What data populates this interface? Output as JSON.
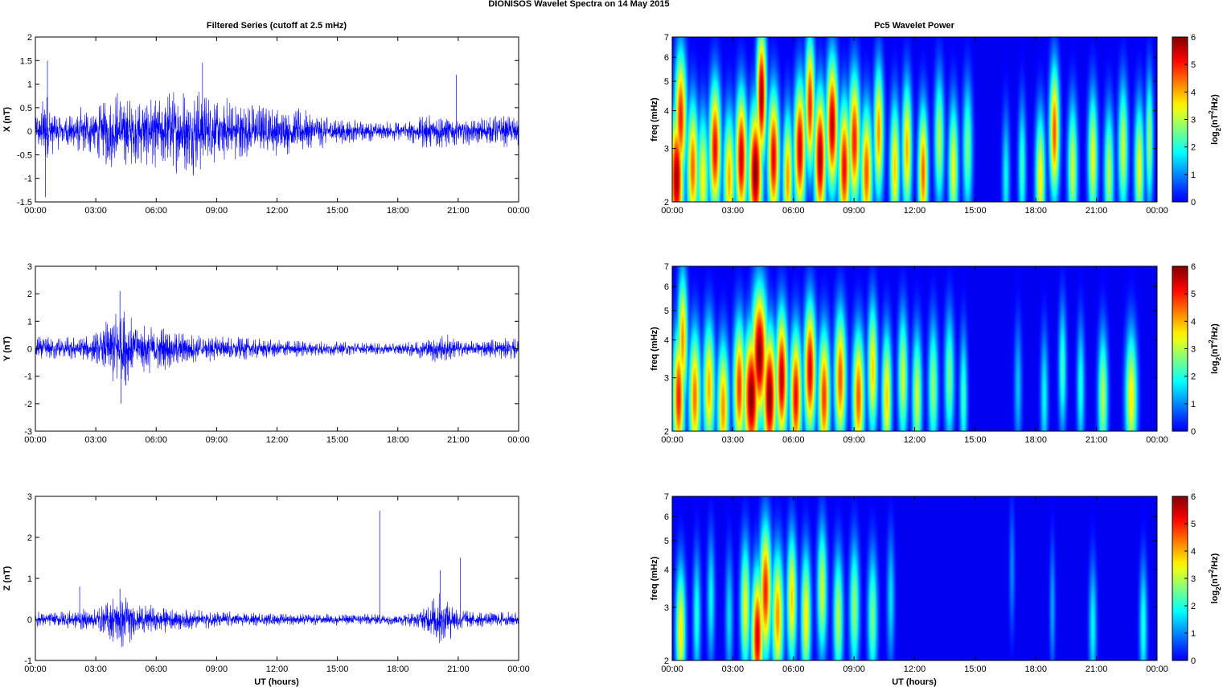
{
  "figure": {
    "title": "DIONISOS Wavelet Spectra on 14 May      2015",
    "left_column_title": "Filtered Series (cutoff at 2.5 mHz)",
    "right_column_title": "Pc5 Wavelet Power",
    "xlabel": "UT (hours)"
  },
  "chart_data": [
    {
      "type": "line",
      "panel": "X",
      "ylabel": "X (nT)",
      "x_ticks": [
        "00:00",
        "03:00",
        "06:00",
        "09:00",
        "12:00",
        "15:00",
        "18:00",
        "21:00",
        "00:00"
      ],
      "xlim_hours": [
        0,
        24
      ],
      "ylim": [
        -1.5,
        2
      ],
      "y_ticks": [
        "-1.5",
        "-1",
        "-0.5",
        "0",
        "0.5",
        "1",
        "1.5",
        "2"
      ],
      "line_color": "#0000ff",
      "envelope": {
        "hours": [
          0,
          0.3,
          0.5,
          0.7,
          1.0,
          1.5,
          2.0,
          2.5,
          3.0,
          3.5,
          4.0,
          4.5,
          5.0,
          5.5,
          6.0,
          7.0,
          8.0,
          8.5,
          9.0,
          10.0,
          11.0,
          12.0,
          13.0,
          14.0,
          15.0,
          16.0,
          17.0,
          18.0,
          19.0,
          19.5,
          20.0,
          20.5,
          21.0,
          22.0,
          23.0,
          24.0
        ],
        "amplitude": [
          0.35,
          0.6,
          1.0,
          0.6,
          0.45,
          0.35,
          0.5,
          0.55,
          0.6,
          0.8,
          0.9,
          0.85,
          0.7,
          0.75,
          0.8,
          0.9,
          1.0,
          0.8,
          0.8,
          0.7,
          0.6,
          0.55,
          0.5,
          0.4,
          0.3,
          0.25,
          0.2,
          0.22,
          0.3,
          0.45,
          0.45,
          0.4,
          0.3,
          0.3,
          0.35,
          0.35
        ]
      },
      "spikes": [
        {
          "hour": 0.6,
          "y": 1.5
        },
        {
          "hour": 0.5,
          "y": -1.4
        },
        {
          "hour": 8.3,
          "y": 1.45
        },
        {
          "hour": 20.9,
          "y": 1.2
        }
      ]
    },
    {
      "type": "line",
      "panel": "Y",
      "ylabel": "Y (nT)",
      "x_ticks": [
        "00:00",
        "03:00",
        "06:00",
        "09:00",
        "12:00",
        "15:00",
        "18:00",
        "21:00",
        "00:00"
      ],
      "xlim_hours": [
        0,
        24
      ],
      "ylim": [
        -3,
        3
      ],
      "y_ticks": [
        "-3",
        "-2",
        "-1",
        "0",
        "1",
        "2",
        "3"
      ],
      "line_color": "#0000ff",
      "envelope": {
        "hours": [
          0,
          1.0,
          2.0,
          3.0,
          3.5,
          4.0,
          4.3,
          4.7,
          5.0,
          6.0,
          7.0,
          8.0,
          9.0,
          10.0,
          11.0,
          12.0,
          14.0,
          16.0,
          18.0,
          19.5,
          20.0,
          20.5,
          21.0,
          22.0,
          23.0,
          24.0
        ],
        "amplitude": [
          0.5,
          0.45,
          0.45,
          0.6,
          1.0,
          1.6,
          1.8,
          1.3,
          1.0,
          0.9,
          0.7,
          0.55,
          0.5,
          0.45,
          0.4,
          0.35,
          0.3,
          0.25,
          0.22,
          0.4,
          0.6,
          0.55,
          0.35,
          0.3,
          0.4,
          0.4
        ]
      },
      "spikes": [
        {
          "hour": 4.2,
          "y": 2.1
        },
        {
          "hour": 4.25,
          "y": -2.0
        }
      ]
    },
    {
      "type": "line",
      "panel": "Z",
      "ylabel": "Z (nT)",
      "x_ticks": [
        "00:00",
        "03:00",
        "06:00",
        "09:00",
        "12:00",
        "15:00",
        "18:00",
        "21:00",
        "00:00"
      ],
      "xlim_hours": [
        0,
        24
      ],
      "ylim": [
        -1,
        3
      ],
      "y_ticks": [
        "-1",
        "0",
        "1",
        "2",
        "3"
      ],
      "line_color": "#0000ff",
      "envelope": {
        "hours": [
          0,
          1.0,
          2.0,
          3.0,
          3.5,
          4.0,
          4.3,
          4.7,
          5.0,
          6.0,
          7.0,
          8.0,
          10.0,
          12.0,
          14.0,
          16.0,
          18.0,
          19.0,
          19.5,
          20.0,
          20.5,
          21.0,
          22.0,
          24.0
        ],
        "amplitude": [
          0.2,
          0.2,
          0.25,
          0.3,
          0.45,
          0.7,
          0.75,
          0.6,
          0.4,
          0.35,
          0.3,
          0.25,
          0.2,
          0.15,
          0.15,
          0.15,
          0.15,
          0.2,
          0.45,
          0.7,
          0.55,
          0.3,
          0.2,
          0.2
        ]
      },
      "spikes": [
        {
          "hour": 2.2,
          "y": 0.8
        },
        {
          "hour": 4.2,
          "y": 0.75
        },
        {
          "hour": 17.1,
          "y": 2.65
        },
        {
          "hour": 21.1,
          "y": 1.5
        },
        {
          "hour": 20.1,
          "y": 1.2
        }
      ]
    },
    {
      "type": "heatmap",
      "panel": "X",
      "ylabel": "freq (mHz)",
      "y_scale": "log",
      "ylim_mHz": [
        2,
        7
      ],
      "y_ticks": [
        "2",
        "3",
        "4",
        "5",
        "6",
        "7"
      ],
      "x_ticks": [
        "00:00",
        "03:00",
        "06:00",
        "09:00",
        "12:00",
        "15:00",
        "18:00",
        "21:00",
        "00:00"
      ],
      "xlim_hours": [
        0,
        24
      ],
      "colorbar": {
        "label_base": "log",
        "label_sub": "2",
        "label_mid": "(nT",
        "label_sup": "2",
        "label_end": "/Hz)",
        "ticks": [
          "0",
          "1",
          "2",
          "3",
          "4",
          "5",
          "6"
        ],
        "range": [
          0,
          6
        ]
      },
      "bursts": [
        {
          "t": 0.2,
          "f": 2.4,
          "p": 5.8,
          "w": 0.35
        },
        {
          "t": 0.4,
          "f": 3.8,
          "p": 5.0,
          "w": 0.3
        },
        {
          "t": 1.0,
          "f": 2.6,
          "p": 4.5,
          "w": 0.3
        },
        {
          "t": 1.5,
          "f": 2.4,
          "p": 3.5,
          "w": 0.3
        },
        {
          "t": 2.1,
          "f": 3.0,
          "p": 5.2,
          "w": 0.3
        },
        {
          "t": 2.8,
          "f": 2.4,
          "p": 4.0,
          "w": 0.3
        },
        {
          "t": 3.4,
          "f": 2.8,
          "p": 5.5,
          "w": 0.3
        },
        {
          "t": 4.1,
          "f": 2.5,
          "p": 6.0,
          "w": 0.35
        },
        {
          "t": 4.4,
          "f": 4.5,
          "p": 5.8,
          "w": 0.25
        },
        {
          "t": 5.0,
          "f": 2.8,
          "p": 5.3,
          "w": 0.3
        },
        {
          "t": 5.7,
          "f": 2.4,
          "p": 4.2,
          "w": 0.25
        },
        {
          "t": 6.3,
          "f": 3.0,
          "p": 5.5,
          "w": 0.3
        },
        {
          "t": 6.8,
          "f": 4.2,
          "p": 5.0,
          "w": 0.25
        },
        {
          "t": 7.3,
          "f": 2.8,
          "p": 5.8,
          "w": 0.3
        },
        {
          "t": 7.9,
          "f": 3.6,
          "p": 5.6,
          "w": 0.3
        },
        {
          "t": 8.5,
          "f": 2.6,
          "p": 5.2,
          "w": 0.3
        },
        {
          "t": 9.0,
          "f": 3.2,
          "p": 5.0,
          "w": 0.3
        },
        {
          "t": 9.6,
          "f": 2.5,
          "p": 4.6,
          "w": 0.3
        },
        {
          "t": 10.2,
          "f": 3.4,
          "p": 4.2,
          "w": 0.25
        },
        {
          "t": 11.0,
          "f": 2.6,
          "p": 3.8,
          "w": 0.25
        },
        {
          "t": 11.6,
          "f": 3.0,
          "p": 4.0,
          "w": 0.25
        },
        {
          "t": 12.4,
          "f": 2.5,
          "p": 4.5,
          "w": 0.25
        },
        {
          "t": 13.2,
          "f": 3.2,
          "p": 3.0,
          "w": 0.25
        },
        {
          "t": 13.9,
          "f": 2.6,
          "p": 3.4,
          "w": 0.25
        },
        {
          "t": 14.6,
          "f": 3.0,
          "p": 2.6,
          "w": 0.25
        },
        {
          "t": 16.5,
          "f": 2.4,
          "p": 1.8,
          "w": 0.2
        },
        {
          "t": 17.3,
          "f": 2.6,
          "p": 2.2,
          "w": 0.2
        },
        {
          "t": 18.2,
          "f": 2.4,
          "p": 3.6,
          "w": 0.25
        },
        {
          "t": 18.9,
          "f": 3.4,
          "p": 4.6,
          "w": 0.25
        },
        {
          "t": 19.8,
          "f": 2.6,
          "p": 3.2,
          "w": 0.25
        },
        {
          "t": 20.8,
          "f": 2.8,
          "p": 3.4,
          "w": 0.25
        },
        {
          "t": 21.6,
          "f": 2.5,
          "p": 3.0,
          "w": 0.25
        },
        {
          "t": 22.3,
          "f": 3.0,
          "p": 3.2,
          "w": 0.25
        },
        {
          "t": 23.1,
          "f": 2.6,
          "p": 3.4,
          "w": 0.25
        },
        {
          "t": 23.6,
          "f": 3.2,
          "p": 2.8,
          "w": 0.2
        }
      ]
    },
    {
      "type": "heatmap",
      "panel": "Y",
      "ylabel": "freq (mHz)",
      "y_scale": "log",
      "ylim_mHz": [
        2,
        7
      ],
      "y_ticks": [
        "2",
        "3",
        "4",
        "5",
        "6",
        "7"
      ],
      "x_ticks": [
        "00:00",
        "03:00",
        "06:00",
        "09:00",
        "12:00",
        "15:00",
        "18:00",
        "21:00",
        "00:00"
      ],
      "xlim_hours": [
        0,
        24
      ],
      "colorbar": {
        "label_base": "log",
        "label_sub": "2",
        "label_mid": "(nT",
        "label_sup": "2",
        "label_end": "/Hz)",
        "ticks": [
          "0",
          "1",
          "2",
          "3",
          "4",
          "5",
          "6"
        ],
        "range": [
          0,
          6
        ]
      },
      "bursts": [
        {
          "t": 0.3,
          "f": 2.6,
          "p": 5.0,
          "w": 0.3
        },
        {
          "t": 0.5,
          "f": 4.0,
          "p": 4.2,
          "w": 0.25
        },
        {
          "t": 1.1,
          "f": 2.6,
          "p": 4.4,
          "w": 0.3
        },
        {
          "t": 1.8,
          "f": 2.8,
          "p": 4.0,
          "w": 0.3
        },
        {
          "t": 2.5,
          "f": 2.4,
          "p": 4.2,
          "w": 0.3
        },
        {
          "t": 3.3,
          "f": 2.8,
          "p": 4.8,
          "w": 0.3
        },
        {
          "t": 3.9,
          "f": 2.6,
          "p": 6.0,
          "w": 0.4
        },
        {
          "t": 4.3,
          "f": 3.6,
          "p": 6.0,
          "w": 0.4
        },
        {
          "t": 4.8,
          "f": 2.6,
          "p": 6.0,
          "w": 0.35
        },
        {
          "t": 5.4,
          "f": 3.0,
          "p": 5.6,
          "w": 0.3
        },
        {
          "t": 6.1,
          "f": 2.6,
          "p": 5.2,
          "w": 0.3
        },
        {
          "t": 6.8,
          "f": 3.2,
          "p": 5.4,
          "w": 0.3
        },
        {
          "t": 7.5,
          "f": 2.6,
          "p": 4.8,
          "w": 0.3
        },
        {
          "t": 8.3,
          "f": 3.0,
          "p": 4.6,
          "w": 0.3
        },
        {
          "t": 9.2,
          "f": 2.6,
          "p": 4.6,
          "w": 0.3
        },
        {
          "t": 9.9,
          "f": 3.2,
          "p": 3.8,
          "w": 0.25
        },
        {
          "t": 10.6,
          "f": 2.6,
          "p": 3.8,
          "w": 0.25
        },
        {
          "t": 11.4,
          "f": 3.0,
          "p": 3.2,
          "w": 0.25
        },
        {
          "t": 12.1,
          "f": 2.6,
          "p": 3.2,
          "w": 0.25
        },
        {
          "t": 12.9,
          "f": 2.8,
          "p": 2.8,
          "w": 0.25
        },
        {
          "t": 13.7,
          "f": 3.0,
          "p": 2.6,
          "w": 0.25
        },
        {
          "t": 14.4,
          "f": 2.6,
          "p": 2.2,
          "w": 0.2
        },
        {
          "t": 17.1,
          "f": 2.8,
          "p": 1.4,
          "w": 0.2
        },
        {
          "t": 18.4,
          "f": 2.6,
          "p": 1.8,
          "w": 0.2
        },
        {
          "t": 19.3,
          "f": 3.2,
          "p": 2.2,
          "w": 0.2
        },
        {
          "t": 20.2,
          "f": 2.8,
          "p": 2.0,
          "w": 0.2
        },
        {
          "t": 21.3,
          "f": 2.6,
          "p": 3.0,
          "w": 0.25
        },
        {
          "t": 22.7,
          "f": 2.6,
          "p": 3.6,
          "w": 0.3
        }
      ]
    },
    {
      "type": "heatmap",
      "panel": "Z",
      "ylabel": "freq (mHz)",
      "y_scale": "log",
      "ylim_mHz": [
        2,
        7
      ],
      "y_ticks": [
        "2",
        "3",
        "4",
        "5",
        "6",
        "7"
      ],
      "x_ticks": [
        "00:00",
        "03:00",
        "06:00",
        "09:00",
        "12:00",
        "15:00",
        "18:00",
        "21:00",
        "00:00"
      ],
      "xlim_hours": [
        0,
        24
      ],
      "colorbar": {
        "label_base": "log",
        "label_sub": "2",
        "label_mid": "(nT",
        "label_sup": "2",
        "label_end": "/Hz)",
        "ticks": [
          "0",
          "1",
          "2",
          "3",
          "4",
          "5",
          "6"
        ],
        "range": [
          0,
          6
        ]
      },
      "bursts": [
        {
          "t": 0.4,
          "f": 2.5,
          "p": 3.6,
          "w": 0.25
        },
        {
          "t": 1.2,
          "f": 2.8,
          "p": 2.0,
          "w": 0.2
        },
        {
          "t": 1.9,
          "f": 3.2,
          "p": 1.8,
          "w": 0.2
        },
        {
          "t": 2.8,
          "f": 2.8,
          "p": 1.6,
          "w": 0.2
        },
        {
          "t": 3.6,
          "f": 3.0,
          "p": 3.4,
          "w": 0.25
        },
        {
          "t": 4.2,
          "f": 2.4,
          "p": 5.4,
          "w": 0.3
        },
        {
          "t": 4.6,
          "f": 3.4,
          "p": 5.0,
          "w": 0.3
        },
        {
          "t": 5.2,
          "f": 2.8,
          "p": 4.2,
          "w": 0.3
        },
        {
          "t": 5.9,
          "f": 3.2,
          "p": 3.8,
          "w": 0.25
        },
        {
          "t": 6.6,
          "f": 2.8,
          "p": 3.6,
          "w": 0.25
        },
        {
          "t": 7.4,
          "f": 3.4,
          "p": 3.2,
          "w": 0.25
        },
        {
          "t": 8.2,
          "f": 2.8,
          "p": 3.0,
          "w": 0.25
        },
        {
          "t": 9.0,
          "f": 3.0,
          "p": 2.8,
          "w": 0.25
        },
        {
          "t": 9.9,
          "f": 2.8,
          "p": 2.6,
          "w": 0.25
        },
        {
          "t": 10.8,
          "f": 3.2,
          "p": 1.6,
          "w": 0.2
        },
        {
          "t": 16.8,
          "f": 4.0,
          "p": 1.0,
          "w": 0.15
        },
        {
          "t": 18.8,
          "f": 3.0,
          "p": 1.2,
          "w": 0.15
        },
        {
          "t": 20.8,
          "f": 2.6,
          "p": 1.8,
          "w": 0.2
        },
        {
          "t": 23.3,
          "f": 2.6,
          "p": 2.0,
          "w": 0.2
        }
      ]
    }
  ]
}
